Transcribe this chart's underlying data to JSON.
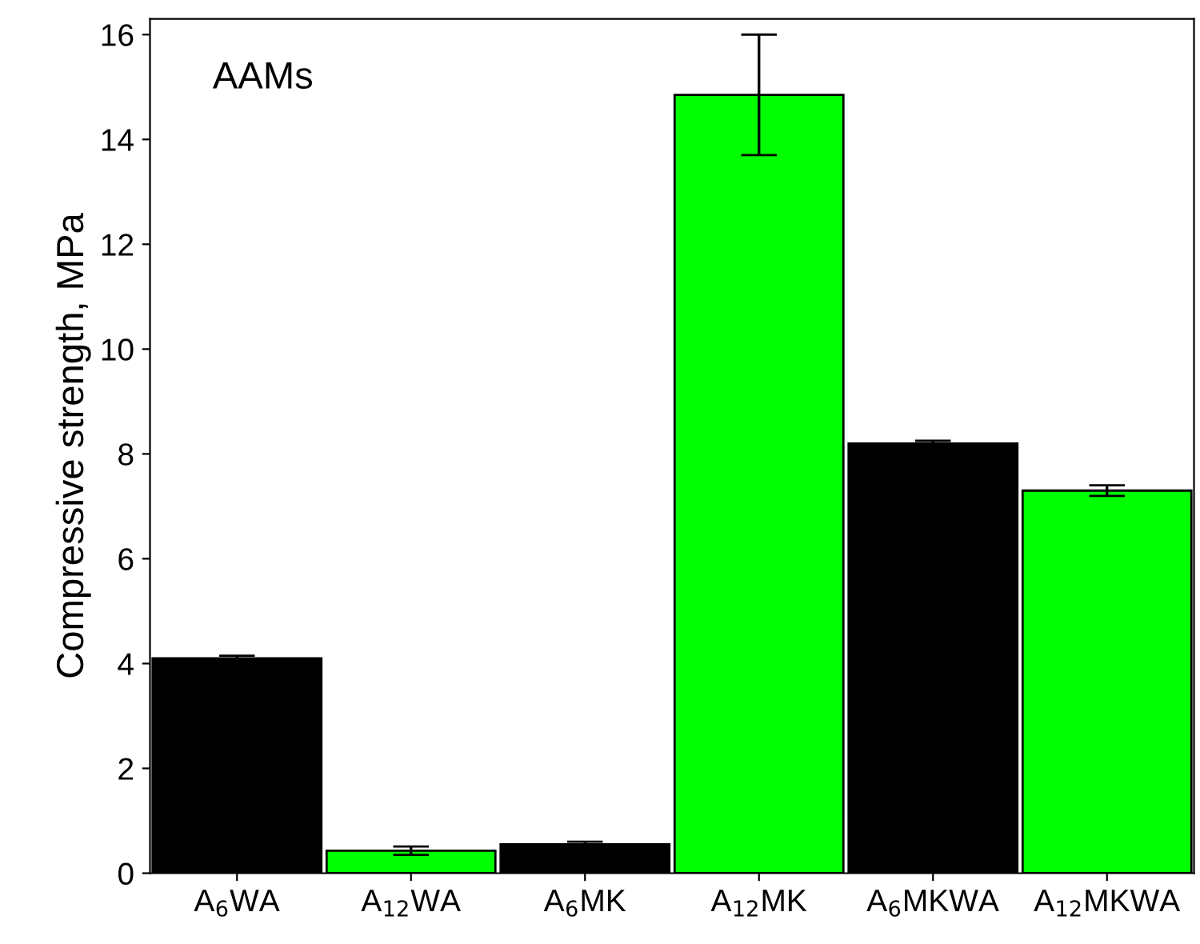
{
  "chart_data": {
    "type": "bar",
    "categories": [
      "A$_{6}$WA",
      "A$_{12}$WA",
      "A$_{6}$MK",
      "A$_{12}$MK",
      "A$_{6}$MKWA",
      "A$_{12}$MKWA"
    ],
    "values": [
      4.1,
      0.43,
      0.55,
      14.85,
      8.2,
      7.3
    ],
    "errors": [
      0.05,
      0.08,
      0.05,
      1.15,
      0.05,
      0.1
    ],
    "colors": [
      "#000000",
      "#00ff00",
      "#000000",
      "#00ff00",
      "#000000",
      "#00ff00"
    ],
    "ylabel": "Compressive strength, MPa",
    "ylim": [
      0,
      16.3
    ],
    "yticks": [
      0,
      2,
      4,
      6,
      8,
      10,
      12,
      14,
      16
    ],
    "annotations": [
      "AAMs"
    ],
    "grid": false,
    "legend": false
  }
}
